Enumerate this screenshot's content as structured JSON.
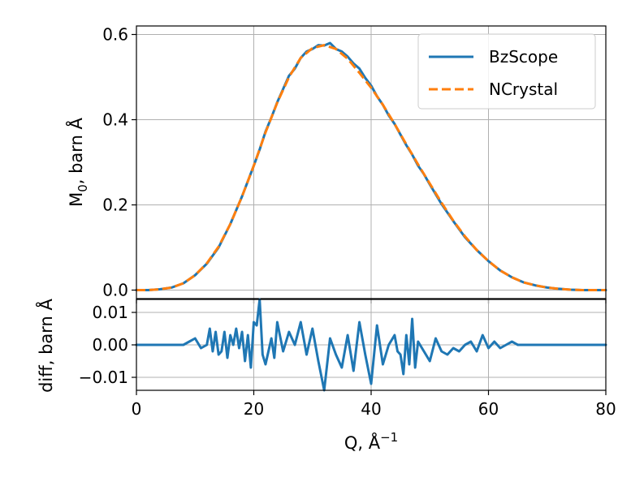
{
  "chart_data": [
    {
      "type": "line",
      "panel": "top",
      "title": "",
      "xlabel": "",
      "ylabel": "M",
      "ylabel_sub": "0",
      "ylabel_rest": ", barn Å",
      "xlim": [
        0,
        80
      ],
      "ylim": [
        -0.02,
        0.62
      ],
      "xticks": [
        0,
        20,
        40,
        60,
        80
      ],
      "yticks": [
        0.0,
        0.2,
        0.4,
        0.6
      ],
      "ytick_labels": [
        "0.0",
        "0.2",
        "0.4",
        "0.6"
      ],
      "grid": true,
      "legend_position": "top-right",
      "series": [
        {
          "name": "BzScope",
          "color": "#1f77b4",
          "style": "solid",
          "x": [
            0,
            2,
            4,
            6,
            8,
            10,
            12,
            14,
            16,
            18,
            20,
            21,
            22,
            23,
            24,
            25,
            26,
            27,
            28,
            29,
            30,
            31,
            32,
            33,
            34,
            35,
            36,
            37,
            38,
            39,
            40,
            41,
            42,
            43,
            44,
            45,
            46,
            47,
            48,
            49,
            50,
            52,
            54,
            56,
            58,
            60,
            62,
            64,
            66,
            68,
            70,
            72,
            74,
            76,
            78,
            80
          ],
          "y": [
            0.0,
            0.0,
            0.002,
            0.006,
            0.016,
            0.035,
            0.062,
            0.1,
            0.155,
            0.22,
            0.292,
            0.33,
            0.372,
            0.405,
            0.441,
            0.472,
            0.503,
            0.52,
            0.545,
            0.56,
            0.566,
            0.575,
            0.574,
            0.58,
            0.566,
            0.56,
            0.548,
            0.532,
            0.52,
            0.498,
            0.48,
            0.455,
            0.435,
            0.41,
            0.39,
            0.365,
            0.34,
            0.318,
            0.292,
            0.272,
            0.248,
            0.202,
            0.162,
            0.124,
            0.094,
            0.068,
            0.046,
            0.03,
            0.018,
            0.011,
            0.006,
            0.003,
            0.001,
            0.0,
            0.0,
            0.0
          ]
        },
        {
          "name": "NCrystal",
          "color": "#ff7f0e",
          "style": "dashed",
          "x": [
            0,
            2,
            4,
            6,
            8,
            10,
            12,
            14,
            16,
            18,
            20,
            22,
            24,
            26,
            28,
            30,
            32,
            34,
            36,
            38,
            40,
            42,
            44,
            46,
            48,
            50,
            52,
            54,
            56,
            58,
            60,
            62,
            64,
            66,
            68,
            70,
            72,
            74,
            76,
            78,
            80
          ],
          "y": [
            0.0,
            0.0,
            0.002,
            0.006,
            0.016,
            0.035,
            0.063,
            0.102,
            0.155,
            0.22,
            0.292,
            0.37,
            0.44,
            0.5,
            0.545,
            0.568,
            0.575,
            0.566,
            0.543,
            0.51,
            0.475,
            0.435,
            0.39,
            0.342,
            0.295,
            0.25,
            0.205,
            0.163,
            0.126,
            0.094,
            0.068,
            0.046,
            0.03,
            0.018,
            0.011,
            0.006,
            0.003,
            0.001,
            0.0,
            0.0,
            0.0
          ]
        }
      ]
    },
    {
      "type": "line",
      "panel": "bottom",
      "title": "",
      "xlabel": "Q, Å",
      "xlabel_sup": "−1",
      "ylabel": "diff, barn Å",
      "xlim": [
        0,
        80
      ],
      "ylim": [
        -0.014,
        0.014
      ],
      "xticks": [
        0,
        20,
        40,
        60,
        80
      ],
      "yticks": [
        -0.01,
        0.0,
        0.01
      ],
      "ytick_labels": [
        "−0.01",
        "0.00",
        "0.01"
      ],
      "grid": true,
      "series": [
        {
          "name": "diff",
          "color": "#1f77b4",
          "style": "solid",
          "x": [
            0,
            5,
            8,
            9,
            10,
            11,
            12,
            12.5,
            13,
            13.5,
            14,
            14.5,
            15,
            15.5,
            16,
            16.5,
            17,
            17.5,
            18,
            18.5,
            19,
            19.5,
            20,
            20.5,
            21,
            21.5,
            22,
            22.5,
            23,
            23.5,
            24,
            25,
            26,
            27,
            28,
            29,
            30,
            31,
            32,
            33,
            34,
            35,
            36,
            37,
            38,
            39,
            40,
            41,
            42,
            43,
            44,
            44.5,
            45,
            45.5,
            46,
            46.5,
            47,
            47.5,
            48,
            49,
            50,
            51,
            52,
            53,
            54,
            55,
            56,
            57,
            58,
            59,
            60,
            61,
            62,
            63,
            64,
            65,
            66,
            68,
            70,
            75,
            80
          ],
          "y": [
            0.0,
            0.0,
            0.0,
            0.001,
            0.002,
            -0.001,
            0.0,
            0.005,
            -0.002,
            0.004,
            -0.003,
            -0.002,
            0.004,
            -0.004,
            0.003,
            0.0,
            0.005,
            -0.001,
            0.004,
            -0.005,
            0.003,
            -0.007,
            0.007,
            0.006,
            0.014,
            -0.003,
            -0.006,
            -0.002,
            0.002,
            -0.004,
            0.007,
            -0.002,
            0.004,
            0.0,
            0.007,
            -0.003,
            0.005,
            -0.005,
            -0.014,
            0.002,
            -0.003,
            -0.007,
            0.003,
            -0.008,
            0.007,
            -0.003,
            -0.012,
            0.006,
            -0.006,
            0.0,
            0.003,
            -0.002,
            -0.003,
            -0.009,
            0.003,
            -0.006,
            0.008,
            -0.007,
            0.001,
            -0.002,
            -0.005,
            0.002,
            -0.002,
            -0.003,
            -0.001,
            -0.002,
            0.0,
            0.001,
            -0.002,
            0.003,
            -0.001,
            0.001,
            -0.001,
            0.0,
            0.001,
            0.0,
            0.0,
            0.0,
            0.0,
            0.0,
            0.0
          ]
        }
      ]
    }
  ]
}
